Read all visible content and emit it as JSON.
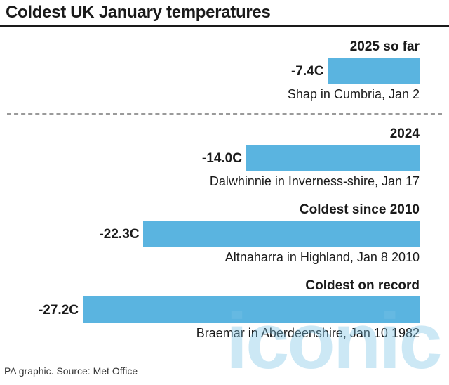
{
  "title": "Coldest UK January temperatures",
  "source": "PA graphic. Source: Met Office",
  "watermark": "iconic",
  "colors": {
    "bar": "#5ab4e0",
    "text": "#1a1a1a",
    "divider": "#9a9a9a"
  },
  "chart_data": {
    "type": "bar",
    "orientation": "horizontal",
    "unit": "C",
    "categories": [
      "2025 so far",
      "2024",
      "Coldest since 2010",
      "Coldest on record"
    ],
    "values": [
      -7.4,
      -14.0,
      -22.3,
      -27.2
    ],
    "value_labels": [
      "-7.4C",
      "-14.0C",
      "-22.3C",
      "-27.2C"
    ],
    "annotations": [
      "Shap in Cumbria, Jan 2",
      "Dalwhinnie in Inverness-shire, Jan 17",
      "Altnaharra in Highland, Jan 8 2010",
      "Braemar in Aberdeenshire, Jan 10 1982"
    ],
    "xlim": [
      -27.2,
      0
    ],
    "grid": false,
    "legend": "none"
  }
}
